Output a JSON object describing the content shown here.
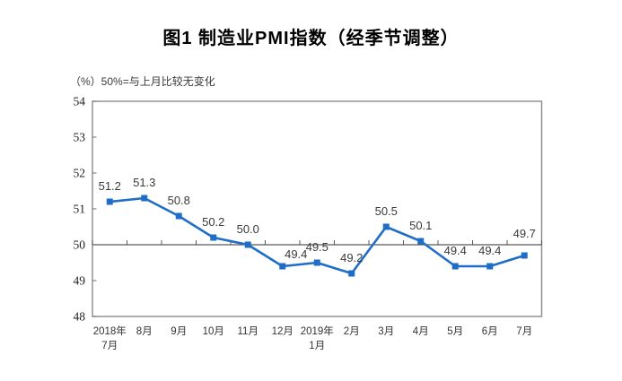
{
  "chart_data": {
    "type": "line",
    "title": "图1 制造业PMI指数（经季节调整）",
    "note": "（%）50%=与上月比较无变化",
    "categories": [
      [
        "2018年",
        "7月"
      ],
      [
        "8月"
      ],
      [
        "9月"
      ],
      [
        "10月"
      ],
      [
        "11月"
      ],
      [
        "12月"
      ],
      [
        "2019年",
        "1月"
      ],
      [
        "2月"
      ],
      [
        "3月"
      ],
      [
        "4月"
      ],
      [
        "5月"
      ],
      [
        "6月"
      ],
      [
        "7月"
      ]
    ],
    "series": [
      {
        "name": "制造业PMI",
        "values": [
          51.2,
          51.3,
          50.8,
          50.2,
          50.0,
          49.4,
          49.5,
          49.2,
          50.5,
          50.1,
          49.4,
          49.4,
          49.7
        ],
        "labels": [
          "51.2",
          "51.3",
          "50.8",
          "50.2",
          "50.0",
          "49.4",
          "49.5",
          "49.2",
          "50.5",
          "50.1",
          "49.4",
          "49.4",
          "49.7"
        ],
        "color": "#1E6EC8"
      }
    ],
    "xlabel": "",
    "ylabel": "%",
    "ylim": [
      48,
      54
    ],
    "ytick_step": 1,
    "reference_line": 50,
    "grid": false,
    "legend": "none",
    "marker": "square"
  }
}
